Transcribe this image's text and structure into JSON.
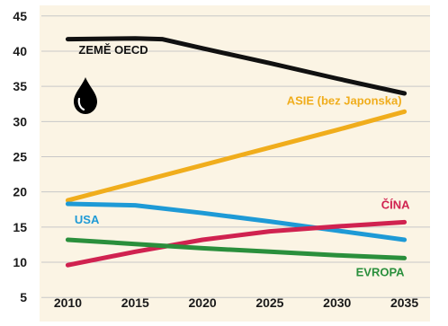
{
  "chart_data": {
    "type": "line",
    "x": [
      2010,
      2015,
      2020,
      2025,
      2030,
      2035
    ],
    "xticks": [
      "2010",
      "2015",
      "2020",
      "2025",
      "2030",
      "2035"
    ],
    "yticks": [
      "5",
      "10",
      "15",
      "20",
      "25",
      "30",
      "35",
      "40",
      "45"
    ],
    "ylim": [
      3.5,
      46.5
    ],
    "xlim": [
      2008.3,
      2036.9
    ],
    "grid": true,
    "series": [
      {
        "name": "ZEMĚ OECD",
        "color": "#111111",
        "x": [
          2010,
          2015,
          2017,
          2020,
          2025,
          2030,
          2035
        ],
        "values": [
          41.7,
          41.8,
          41.7,
          40.4,
          38.3,
          36.1,
          34.0
        ],
        "label_x": 2010.8,
        "label_y": 39.6,
        "label_anchor": "start"
      },
      {
        "name": "ASIE (bez Japonska)",
        "color": "#f0ad1c",
        "x": [
          2010,
          2015,
          2020,
          2025,
          2030,
          2035
        ],
        "values": [
          18.8,
          21.3,
          23.8,
          26.3,
          28.8,
          31.4
        ],
        "label_x": 2034.8,
        "label_y": 32.4,
        "label_anchor": "end"
      },
      {
        "name": "USA",
        "color": "#1e9ad6",
        "x": [
          2010,
          2015,
          2020,
          2025,
          2030,
          2035
        ],
        "values": [
          18.3,
          18.1,
          17.0,
          15.8,
          14.5,
          13.2
        ],
        "label_x": 2010.5,
        "label_y": 15.5,
        "label_anchor": "start"
      },
      {
        "name": "ČÍNA",
        "color": "#d02250",
        "x": [
          2010,
          2015,
          2020,
          2025,
          2030,
          2035
        ],
        "values": [
          9.6,
          11.5,
          13.2,
          14.4,
          15.1,
          15.7
        ],
        "label_x": 2035.4,
        "label_y": 17.6,
        "label_anchor": "end"
      },
      {
        "name": "EVROPA",
        "color": "#2a8f3c",
        "x": [
          2010,
          2015,
          2020,
          2025,
          2030,
          2035
        ],
        "values": [
          13.2,
          12.6,
          12.0,
          11.5,
          11.0,
          10.6
        ],
        "label_x": 2035.0,
        "label_y": 8.0,
        "label_anchor": "end"
      }
    ],
    "icon": "oil-drop-icon"
  }
}
